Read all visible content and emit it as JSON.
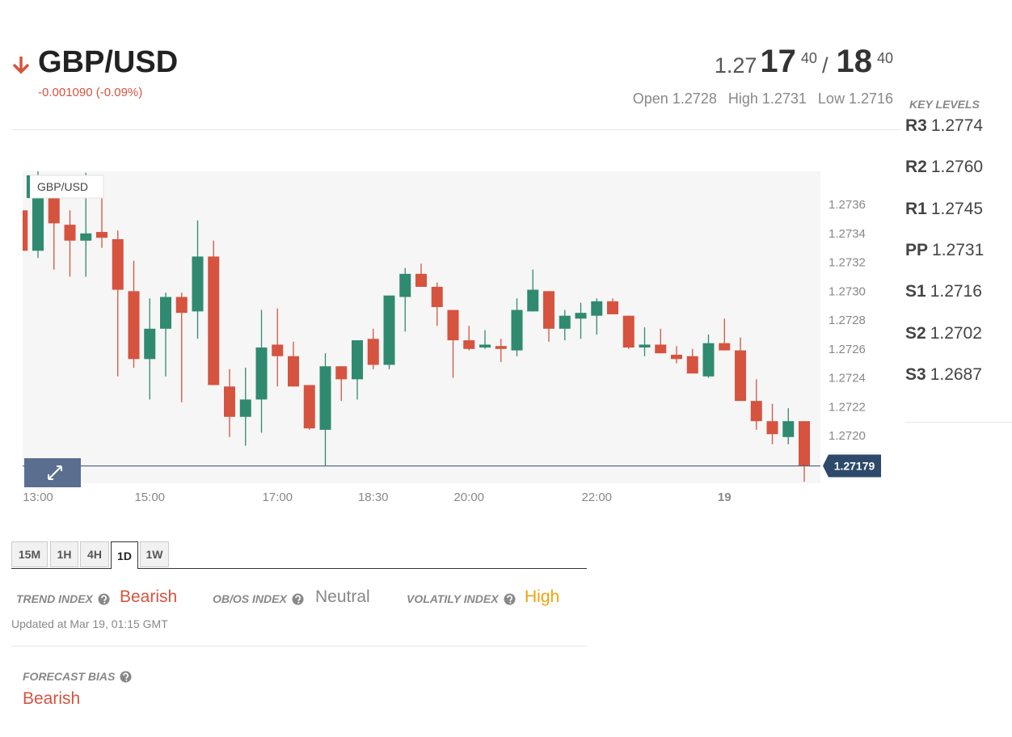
{
  "header": {
    "pair": "GBP/USD",
    "change": "-0.001090 (-0.09%)",
    "price": {
      "prefix": "1.27",
      "bid": "17",
      "bid_sup": "40",
      "separator": "/",
      "ask": "18",
      "ask_sup": "40"
    },
    "stats": [
      "Open 1.2728",
      "High 1.2731",
      "Low 1.2716"
    ]
  },
  "key_levels": {
    "title": "KEY LEVELS",
    "levels": [
      {
        "name": "R3",
        "value": "1.2774"
      },
      {
        "name": "R2",
        "value": "1.2760"
      },
      {
        "name": "R1",
        "value": "1.2745"
      },
      {
        "name": "PP",
        "value": "1.2731"
      },
      {
        "name": "S1",
        "value": "1.2716"
      },
      {
        "name": "S2",
        "value": "1.2702"
      },
      {
        "name": "S3",
        "value": "1.2687"
      }
    ]
  },
  "chart_data": {
    "type": "candlestick",
    "series_name": "GBP/USD",
    "up_color": "#2f8a70",
    "down_color": "#d6533f",
    "categories": [
      null,
      "13:00",
      null,
      null,
      null,
      null,
      null,
      null,
      "15:00",
      null,
      null,
      null,
      null,
      null,
      null,
      null,
      "17:00",
      null,
      null,
      null,
      null,
      null,
      "18:30",
      null,
      null,
      null,
      null,
      null,
      "20:00",
      null,
      null,
      null,
      null,
      null,
      null,
      null,
      "22:00",
      null,
      null,
      null,
      null,
      null,
      null,
      null,
      "19",
      null,
      null,
      null,
      null,
      null
    ],
    "open": [
      1.27356,
      1.27328,
      1.27367,
      1.27346,
      1.27335,
      1.27341,
      1.27336,
      1.273,
      1.27253,
      1.27274,
      1.27296,
      1.27286,
      1.27324,
      1.27234,
      1.27213,
      1.27225,
      1.27263,
      1.27255,
      1.27235,
      1.27204,
      1.27248,
      1.27239,
      1.27267,
      1.27249,
      1.27296,
      1.27312,
      1.27303,
      1.27287,
      1.27266,
      1.27261,
      1.27262,
      1.27259,
      1.27286,
      1.273,
      1.27274,
      1.27281,
      1.27283,
      1.27293,
      1.27283,
      1.27261,
      1.27263,
      1.27256,
      1.27255,
      1.27241,
      1.27264,
      1.27259,
      1.27224,
      1.2721,
      1.27199,
      1.2721
    ],
    "high": [
      1.27383,
      1.27383,
      1.27373,
      1.27356,
      1.27382,
      1.27367,
      1.27342,
      1.27321,
      1.27295,
      1.27299,
      1.27299,
      1.27349,
      1.27335,
      1.27246,
      1.27247,
      1.27287,
      1.27288,
      1.27265,
      1.27235,
      1.27257,
      1.27248,
      1.27266,
      1.27274,
      1.27297,
      1.27316,
      1.27319,
      1.27306,
      1.27287,
      1.27276,
      1.27273,
      1.27267,
      1.27295,
      1.27315,
      1.273,
      1.27287,
      1.27292,
      1.27295,
      1.27295,
      1.27283,
      1.27275,
      1.27274,
      1.27262,
      1.2726,
      1.2727,
      1.27281,
      1.27268,
      1.27239,
      1.27222,
      1.27219,
      1.2721
    ],
    "low": [
      1.27321,
      1.27323,
      1.27315,
      1.2731,
      1.2731,
      1.2733,
      1.27241,
      1.27247,
      1.27225,
      1.27241,
      1.27223,
      1.27267,
      1.27235,
      1.27199,
      1.27193,
      1.27202,
      1.27234,
      1.27234,
      1.27204,
      1.27179,
      1.27224,
      1.27225,
      1.27246,
      1.27246,
      1.27272,
      1.27303,
      1.27276,
      1.2724,
      1.27259,
      1.2726,
      1.27251,
      1.27255,
      1.27286,
      1.27265,
      1.27266,
      1.27267,
      1.2727,
      1.27284,
      1.2726,
      1.27255,
      1.27257,
      1.2725,
      1.27243,
      1.2724,
      1.27259,
      1.27224,
      1.27204,
      1.27194,
      1.27194,
      1.27168
    ],
    "close": [
      1.27328,
      1.27373,
      1.27347,
      1.27335,
      1.2734,
      1.27337,
      1.27301,
      1.27253,
      1.27274,
      1.27296,
      1.27285,
      1.27324,
      1.27235,
      1.27213,
      1.27225,
      1.27261,
      1.27255,
      1.27234,
      1.27205,
      1.27248,
      1.27239,
      1.27266,
      1.27249,
      1.27297,
      1.27312,
      1.27303,
      1.27289,
      1.27266,
      1.2726,
      1.27263,
      1.2726,
      1.27287,
      1.27301,
      1.27274,
      1.27283,
      1.27285,
      1.27293,
      1.27284,
      1.27261,
      1.27263,
      1.27257,
      1.27253,
      1.27243,
      1.27264,
      1.27259,
      1.27224,
      1.2721,
      1.27201,
      1.2721,
      1.27179
    ],
    "ylim": [
      1.27167,
      1.27383
    ],
    "yticks": [
      {
        "value": 1.272,
        "label": "1.2720"
      },
      1.2722,
      1.2724,
      1.2726,
      1.2728,
      {
        "value": 1.273,
        "label": "1.2730"
      },
      1.2732,
      1.2734,
      1.2736
    ],
    "last": 1.27179,
    "grid": false
  },
  "timeframes": {
    "options": [
      "15M",
      "1H",
      "4H",
      "1D",
      "1W"
    ],
    "active": "1D"
  },
  "indexes": [
    {
      "label": "TREND INDEX",
      "value": "Bearish"
    },
    {
      "label": "OB/OS INDEX",
      "value": "Neutral"
    },
    {
      "label": "VOLATILY INDEX",
      "value": "High"
    }
  ],
  "updated": "Updated at Mar 19, 01:15 GMT",
  "forecast": {
    "label": "FORECAST BIAS",
    "value": "Bearish"
  }
}
